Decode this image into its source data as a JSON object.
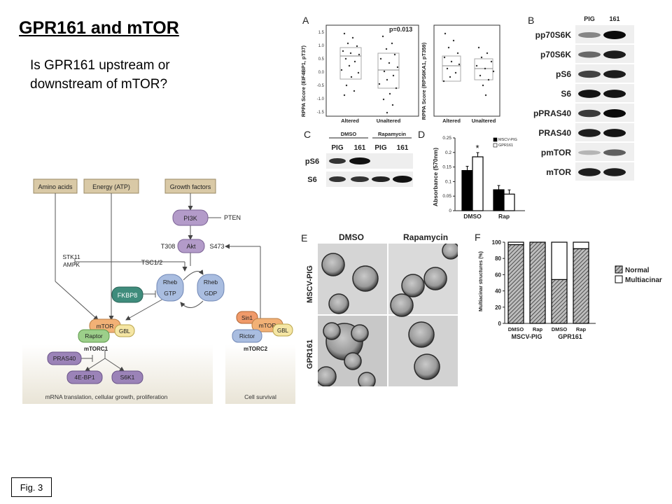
{
  "slide": {
    "title": "GPR161 and mTOR",
    "subtitle": "Is GPR161 upstream or downstream of mTOR?",
    "fig_label": "Fig. 3"
  },
  "pathway": {
    "inputs": [
      "Amino acids",
      "Energy (ATP)",
      "Growth factors"
    ],
    "nodes": {
      "pi3k": "PI3K",
      "pten": "PTEN",
      "akt": "Akt",
      "t308": "T308",
      "s473": "S473",
      "stk11": "STK11",
      "ampk": "AMPK",
      "tsc": "TSC1/2",
      "rheb_gtp_top": "Rheb",
      "rheb_gtp": "GTP",
      "rheb_gdp_top": "Rheb",
      "rheb_gdp": "GDP",
      "fkbp8": "FKBP8",
      "mtor1": "mTOR",
      "gbl1": "GBL",
      "raptor": "Raptor",
      "mtorc1": "mTORC1",
      "pras40": "PRAS40",
      "4ebp1": "4E-BP1",
      "s6k1": "S6K1",
      "sin1": "Sin1",
      "mtor2": "mTOR",
      "gbl2": "GBL",
      "rictor": "Rictor",
      "mtorc2": "mTORC2"
    },
    "outputs": {
      "left": "mRNA translation, cellular growth, proliferation",
      "right": "Cell survival"
    }
  },
  "panelA": {
    "letter": "A",
    "pvalue": "p=0.013",
    "plot1_ylabel": "RPPA Score (EIF4BP1, pT37)",
    "plot2_ylabel": "RPPA Score (RPS6KA1, pT359)",
    "yticks": [
      "1.5",
      "1.0",
      "0.5",
      "0.0",
      "-0.5",
      "-1.0",
      "-1.5"
    ],
    "groups": [
      "Altered",
      "Unaltered"
    ]
  },
  "panelB": {
    "letter": "B",
    "lanes": [
      "PIG",
      "161"
    ],
    "rows": [
      "pp70S6K",
      "p70S6K",
      "pS6",
      "S6",
      "pPRAS40",
      "PRAS40",
      "pmTOR",
      "mTOR"
    ]
  },
  "panelC": {
    "letter": "C",
    "groups": [
      "DMSO",
      "Rapamycin"
    ],
    "lanes": [
      "PIG",
      "161",
      "PIG",
      "161"
    ],
    "rows": [
      "pS6",
      "S6"
    ]
  },
  "panelE": {
    "letter": "E",
    "cols": [
      "DMSO",
      "Rapamycin"
    ],
    "rows": [
      "MSCV-PIG",
      "GPR161"
    ]
  },
  "chart_data": [
    {
      "type": "bar",
      "panel": "D",
      "categories": [
        "DMSO",
        "Rap"
      ],
      "series": [
        {
          "name": "MSCV-PIG",
          "values": [
            0.138,
            0.072
          ],
          "color": "#000000"
        },
        {
          "name": "GPR161",
          "values": [
            0.185,
            0.057
          ],
          "color": "#ffffff"
        }
      ],
      "annotation": "*",
      "title": "",
      "xlabel": "",
      "ylabel": "Absorbance (570nm)",
      "ylim": [
        0,
        0.25
      ],
      "yticks": [
        "0",
        "0.05",
        "0.1",
        "0.15",
        "0.2",
        "0.25"
      ],
      "legend": "top-right"
    },
    {
      "type": "bar",
      "panel": "F",
      "stacked": true,
      "categories": [
        "DMSO",
        "Rap",
        "DMSO",
        "Rap"
      ],
      "group_labels": [
        "MSCV-PIG",
        "GPR161"
      ],
      "series": [
        {
          "name": "Normal",
          "values": [
            97,
            100,
            54,
            92
          ],
          "color": "#777777"
        },
        {
          "name": "Multiacinar",
          "values": [
            3,
            0,
            46,
            8
          ],
          "color": "#ffffff"
        }
      ],
      "title": "",
      "xlabel": "",
      "ylabel": "Multiacinar structures (%)",
      "ylim": [
        0,
        100
      ],
      "yticks": [
        "0",
        "20",
        "40",
        "60",
        "80",
        "100"
      ],
      "legend": "right"
    }
  ]
}
